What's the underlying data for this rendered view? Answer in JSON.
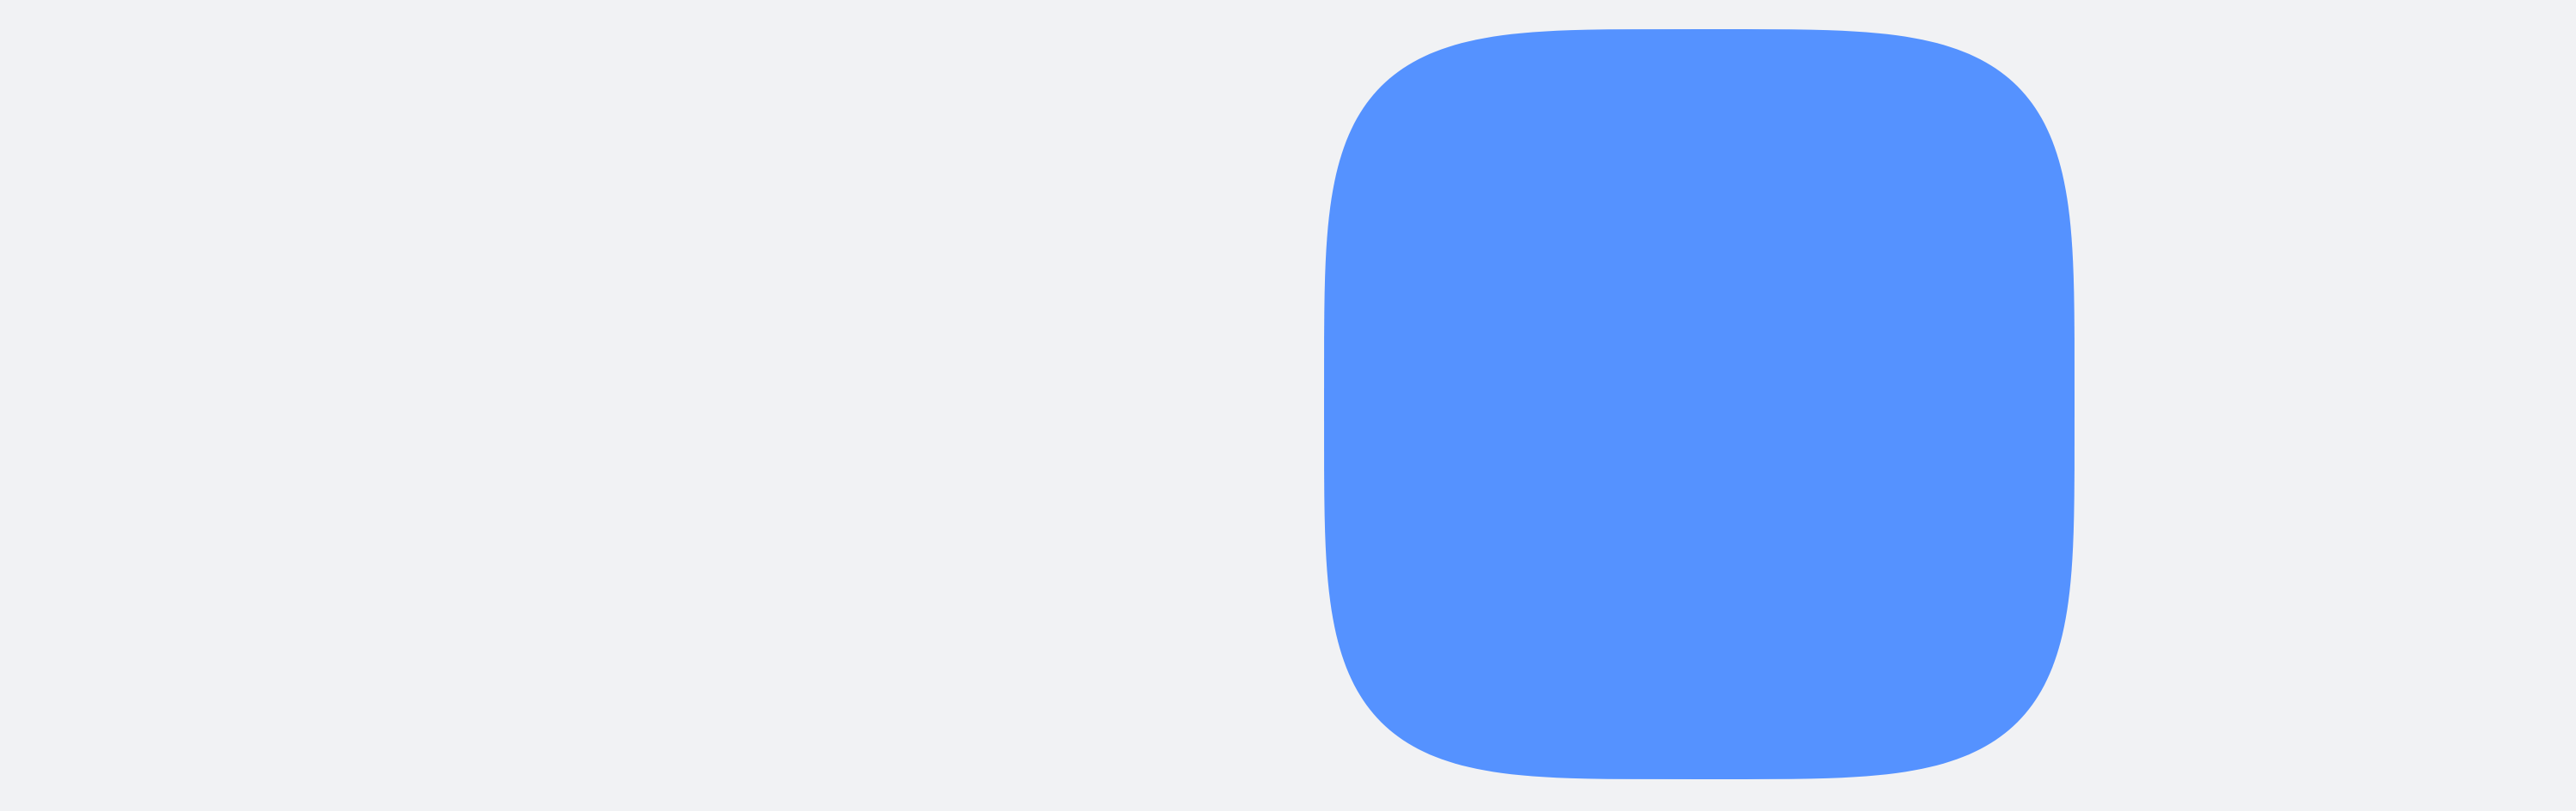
{
  "background_color": "#F1F2F4",
  "icon": {
    "semantic": "app-icon-squircle",
    "fill_color": "#5592FF"
  }
}
